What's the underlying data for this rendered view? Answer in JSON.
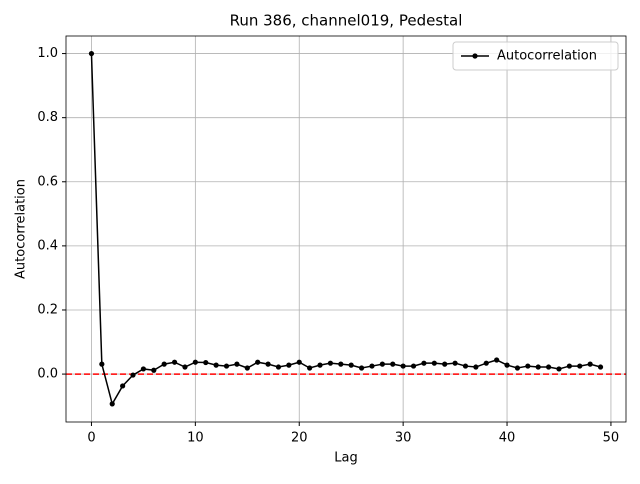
{
  "chart_data": {
    "type": "line",
    "title": "Run 386, channel019, Pedestal",
    "xlabel": "Lag",
    "ylabel": "Autocorrelation",
    "x": [
      0,
      1,
      2,
      3,
      4,
      5,
      6,
      7,
      8,
      9,
      10,
      11,
      12,
      13,
      14,
      15,
      16,
      17,
      18,
      19,
      20,
      21,
      22,
      23,
      24,
      25,
      26,
      27,
      28,
      29,
      30,
      31,
      32,
      33,
      34,
      35,
      36,
      37,
      38,
      39,
      40,
      41,
      42,
      43,
      44,
      45,
      46,
      47,
      48,
      49
    ],
    "series": [
      {
        "name": "Autocorrelation",
        "color": "#000000",
        "values": [
          1.0,
          0.031,
          -0.093,
          -0.037,
          -0.003,
          0.016,
          0.012,
          0.031,
          0.037,
          0.022,
          0.037,
          0.036,
          0.028,
          0.025,
          0.031,
          0.019,
          0.037,
          0.031,
          0.022,
          0.028,
          0.037,
          0.019,
          0.028,
          0.034,
          0.031,
          0.028,
          0.019,
          0.025,
          0.031,
          0.031,
          0.025,
          0.025,
          0.034,
          0.034,
          0.031,
          0.034,
          0.025,
          0.022,
          0.034,
          0.044,
          0.028,
          0.019,
          0.025,
          0.022,
          0.022,
          0.016,
          0.025,
          0.025,
          0.031,
          0.022
        ]
      }
    ],
    "reference_line": {
      "value": 0,
      "color": "#ff0000"
    },
    "xlim": [
      -2.45,
      51.45
    ],
    "ylim": [
      -0.1495,
      1.0548
    ],
    "xticks": [
      0,
      10,
      20,
      30,
      40,
      50
    ],
    "yticks": [
      {
        "value": 0,
        "label": "0.0"
      },
      0.2,
      0.4,
      0.6,
      0.8,
      {
        "value": 1,
        "label": "1.0"
      }
    ],
    "grid": true,
    "legend": "upper-right"
  }
}
